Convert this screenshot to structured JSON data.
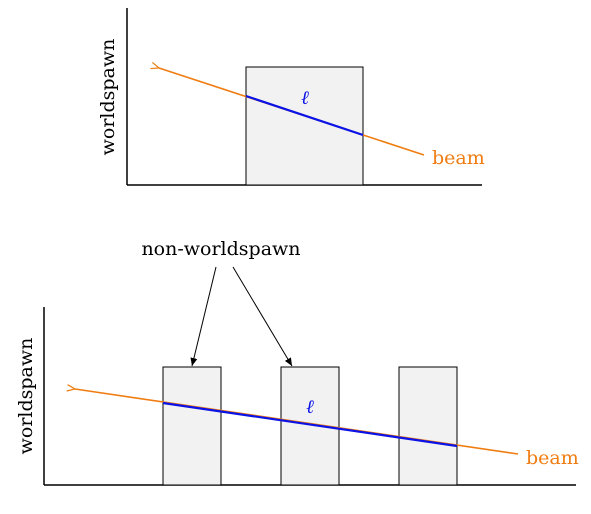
{
  "top_panel": {
    "ylabel": "worldspawn",
    "beam_label": "beam",
    "segment_label": "ℓ"
  },
  "bottom_panel": {
    "ylabel": "worldspawn",
    "beam_label": "beam",
    "segment_label": "ℓ",
    "callout_label": "non-worldspawn"
  },
  "colors": {
    "beam": "#f07d12",
    "segment": "#0a12e6",
    "box_fill": "#f2f2f2",
    "axis": "#000000"
  }
}
